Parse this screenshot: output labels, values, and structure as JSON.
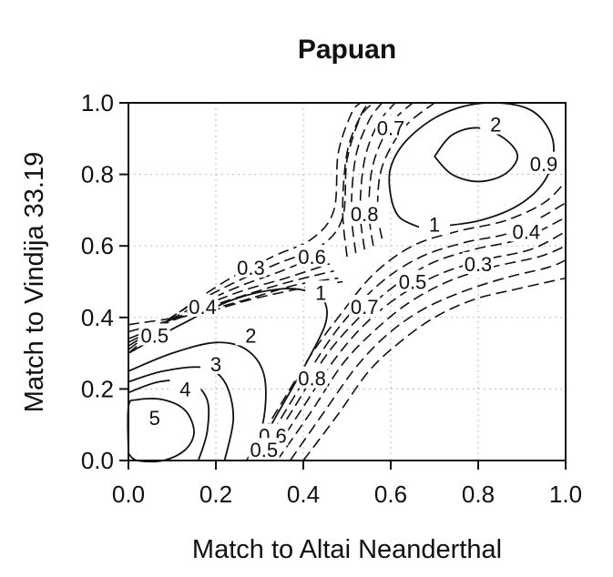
{
  "chart_data": {
    "type": "contour",
    "title": "Papuan",
    "xlabel": "Match to Altai Neanderthal",
    "ylabel": "Match to Vindija 33.19",
    "xlim": [
      0,
      1
    ],
    "ylim": [
      0,
      1
    ],
    "xticks": [
      0.0,
      0.2,
      0.4,
      0.6,
      0.8,
      1.0
    ],
    "yticks": [
      0.0,
      0.2,
      0.4,
      0.6,
      0.8,
      1.0
    ],
    "xtick_labels": [
      "0.0",
      "0.2",
      "0.4",
      "0.6",
      "0.8",
      "1.0"
    ],
    "ytick_labels": [
      "0.0",
      "0.2",
      "0.4",
      "0.6",
      "0.8",
      "1.0"
    ],
    "grid": true,
    "line_style_note": "solid lines for levels >= 1, dashed lines for levels < 1",
    "contour_labels": [
      {
        "text": "5",
        "x": 0.06,
        "y": 0.12
      },
      {
        "text": "4",
        "x": 0.13,
        "y": 0.2
      },
      {
        "text": "3",
        "x": 0.2,
        "y": 0.27
      },
      {
        "text": "2",
        "x": 0.28,
        "y": 0.35
      },
      {
        "text": "1",
        "x": 0.44,
        "y": 0.47
      },
      {
        "text": "0.4",
        "x": 0.17,
        "y": 0.43
      },
      {
        "text": "0.5",
        "x": 0.06,
        "y": 0.35
      },
      {
        "text": "0.3",
        "x": 0.28,
        "y": 0.54
      },
      {
        "text": "0.6",
        "x": 0.42,
        "y": 0.57
      },
      {
        "text": "0.8",
        "x": 0.54,
        "y": 0.69
      },
      {
        "text": "0.7",
        "x": 0.6,
        "y": 0.93
      },
      {
        "text": "2",
        "x": 0.84,
        "y": 0.94
      },
      {
        "text": "1",
        "x": 0.7,
        "y": 0.66
      },
      {
        "text": "0.9",
        "x": 0.95,
        "y": 0.83
      },
      {
        "text": "0.4",
        "x": 0.91,
        "y": 0.64
      },
      {
        "text": "0.3",
        "x": 0.8,
        "y": 0.55
      },
      {
        "text": "0.5",
        "x": 0.65,
        "y": 0.5
      },
      {
        "text": "0.7",
        "x": 0.54,
        "y": 0.43
      },
      {
        "text": "0.8",
        "x": 0.42,
        "y": 0.23
      },
      {
        "text": "0.6",
        "x": 0.33,
        "y": 0.07
      },
      {
        "text": "0.5",
        "x": 0.31,
        "y": 0.03
      }
    ],
    "contours": [
      {
        "level": "5",
        "style": "solid",
        "points": [
          [
            0.0,
            0.02
          ],
          [
            0.02,
            0.0
          ],
          [
            0.08,
            0.0
          ],
          [
            0.13,
            0.03
          ],
          [
            0.15,
            0.08
          ],
          [
            0.13,
            0.14
          ],
          [
            0.08,
            0.17
          ],
          [
            0.02,
            0.17
          ],
          [
            0.0,
            0.15
          ],
          [
            0.0,
            0.02
          ]
        ]
      },
      {
        "level": "4",
        "style": "solid",
        "points": [
          [
            0.0,
            0.19
          ],
          [
            0.07,
            0.22
          ],
          [
            0.14,
            0.22
          ],
          [
            0.18,
            0.17
          ],
          [
            0.18,
            0.08
          ],
          [
            0.16,
            0.0
          ]
        ]
      },
      {
        "level": "3",
        "style": "solid",
        "points": [
          [
            0.0,
            0.22
          ],
          [
            0.08,
            0.25
          ],
          [
            0.17,
            0.26
          ],
          [
            0.22,
            0.22
          ],
          [
            0.24,
            0.12
          ],
          [
            0.22,
            0.0
          ]
        ]
      },
      {
        "level": "2",
        "style": "solid",
        "points": [
          [
            0.0,
            0.25
          ],
          [
            0.1,
            0.3
          ],
          [
            0.2,
            0.33
          ],
          [
            0.27,
            0.31
          ],
          [
            0.31,
            0.24
          ],
          [
            0.31,
            0.12
          ],
          [
            0.28,
            0.0
          ]
        ]
      },
      {
        "level": "1",
        "style": "solid",
        "points": [
          [
            0.0,
            0.3
          ],
          [
            0.12,
            0.38
          ],
          [
            0.24,
            0.45
          ],
          [
            0.35,
            0.48
          ],
          [
            0.42,
            0.47
          ],
          [
            0.45,
            0.44
          ],
          [
            0.45,
            0.38
          ],
          [
            0.41,
            0.28
          ],
          [
            0.35,
            0.15
          ],
          [
            0.28,
            0.0
          ]
        ]
      },
      {
        "level": "2",
        "style": "solid",
        "points": [
          [
            0.7,
            0.85
          ],
          [
            0.74,
            0.8
          ],
          [
            0.8,
            0.78
          ],
          [
            0.86,
            0.8
          ],
          [
            0.89,
            0.85
          ],
          [
            0.86,
            0.9
          ],
          [
            0.8,
            0.93
          ],
          [
            0.74,
            0.91
          ],
          [
            0.7,
            0.85
          ]
        ]
      },
      {
        "level": "1",
        "style": "solid",
        "points": [
          [
            0.67,
            0.65
          ],
          [
            0.62,
            0.68
          ],
          [
            0.6,
            0.74
          ],
          [
            0.6,
            0.82
          ],
          [
            0.64,
            0.9
          ],
          [
            0.72,
            0.97
          ],
          [
            0.82,
            1.0
          ],
          [
            0.92,
            0.98
          ],
          [
            0.97,
            0.9
          ],
          [
            0.96,
            0.8
          ],
          [
            0.9,
            0.72
          ],
          [
            0.8,
            0.67
          ],
          [
            0.67,
            0.65
          ]
        ]
      },
      {
        "level": "0.9",
        "style": "dashed",
        "points": [
          [
            0.58,
            0.62
          ],
          [
            0.57,
            0.7
          ],
          [
            0.58,
            0.82
          ],
          [
            0.63,
            0.93
          ],
          [
            0.7,
            1.0
          ]
        ]
      },
      {
        "level": "0.8",
        "style": "dashed",
        "points": [
          [
            0.56,
            0.6
          ],
          [
            0.55,
            0.7
          ],
          [
            0.56,
            0.83
          ],
          [
            0.6,
            0.94
          ],
          [
            0.65,
            1.0
          ]
        ]
      },
      {
        "level": "0.7",
        "style": "dashed",
        "points": [
          [
            0.54,
            0.59
          ],
          [
            0.53,
            0.7
          ],
          [
            0.54,
            0.84
          ],
          [
            0.57,
            0.94
          ],
          [
            0.61,
            1.0
          ]
        ]
      },
      {
        "level": "0.6",
        "style": "dashed",
        "points": [
          [
            0.52,
            0.58
          ],
          [
            0.51,
            0.7
          ],
          [
            0.52,
            0.85
          ],
          [
            0.55,
            0.95
          ],
          [
            0.58,
            1.0
          ]
        ]
      },
      {
        "level": "0.5",
        "style": "dashed",
        "points": [
          [
            0.5,
            0.57
          ],
          [
            0.49,
            0.7
          ],
          [
            0.5,
            0.86
          ],
          [
            0.53,
            0.96
          ],
          [
            0.56,
            1.0
          ]
        ]
      },
      {
        "level": "0.3",
        "style": "dashed",
        "points": [
          [
            0.0,
            0.3
          ],
          [
            0.1,
            0.4
          ],
          [
            0.22,
            0.5
          ],
          [
            0.33,
            0.57
          ],
          [
            0.42,
            0.62
          ],
          [
            0.47,
            0.7
          ],
          [
            0.48,
            0.86
          ],
          [
            0.51,
            0.97
          ],
          [
            0.53,
            1.0
          ]
        ]
      },
      {
        "level": "0.4",
        "style": "dashed",
        "points": [
          [
            0.0,
            0.31
          ],
          [
            0.11,
            0.41
          ],
          [
            0.23,
            0.49
          ],
          [
            0.34,
            0.55
          ],
          [
            0.44,
            0.6
          ],
          [
            0.49,
            0.68
          ],
          [
            0.5,
            0.84
          ],
          [
            0.53,
            0.96
          ],
          [
            0.55,
            1.0
          ]
        ]
      },
      {
        "level": "0.5",
        "style": "dashed",
        "points": [
          [
            0.0,
            0.32
          ],
          [
            0.12,
            0.41
          ],
          [
            0.24,
            0.48
          ],
          [
            0.35,
            0.53
          ],
          [
            0.45,
            0.58
          ]
        ]
      },
      {
        "level": "0.6",
        "style": "dashed",
        "points": [
          [
            0.0,
            0.33
          ],
          [
            0.13,
            0.41
          ],
          [
            0.25,
            0.47
          ],
          [
            0.36,
            0.51
          ],
          [
            0.46,
            0.55
          ]
        ]
      },
      {
        "level": "0.7",
        "style": "dashed",
        "points": [
          [
            0.0,
            0.34
          ],
          [
            0.14,
            0.41
          ],
          [
            0.26,
            0.46
          ],
          [
            0.37,
            0.5
          ],
          [
            0.47,
            0.53
          ]
        ]
      },
      {
        "level": "0.8",
        "style": "dashed",
        "points": [
          [
            0.0,
            0.36
          ],
          [
            0.15,
            0.41
          ],
          [
            0.27,
            0.45
          ],
          [
            0.38,
            0.49
          ],
          [
            0.48,
            0.51
          ]
        ]
      },
      {
        "level": "0.9",
        "style": "dashed",
        "points": [
          [
            0.0,
            0.38
          ],
          [
            0.16,
            0.41
          ],
          [
            0.28,
            0.45
          ],
          [
            0.39,
            0.48
          ],
          [
            0.49,
            0.5
          ]
        ]
      },
      {
        "level": "0.9",
        "style": "dashed",
        "points": [
          [
            0.27,
            0.0
          ],
          [
            0.35,
            0.16
          ],
          [
            0.42,
            0.3
          ],
          [
            0.48,
            0.4
          ],
          [
            0.56,
            0.52
          ],
          [
            0.65,
            0.6
          ],
          [
            0.75,
            0.64
          ],
          [
            0.86,
            0.67
          ],
          [
            0.95,
            0.72
          ],
          [
            1.0,
            0.78
          ]
        ]
      },
      {
        "level": "0.8",
        "style": "dashed",
        "points": [
          [
            0.29,
            0.0
          ],
          [
            0.37,
            0.16
          ],
          [
            0.44,
            0.3
          ],
          [
            0.5,
            0.4
          ],
          [
            0.58,
            0.5
          ],
          [
            0.67,
            0.57
          ],
          [
            0.77,
            0.61
          ],
          [
            0.88,
            0.64
          ],
          [
            1.0,
            0.72
          ]
        ]
      },
      {
        "level": "0.7",
        "style": "dashed",
        "points": [
          [
            0.3,
            0.0
          ],
          [
            0.38,
            0.15
          ],
          [
            0.45,
            0.29
          ],
          [
            0.52,
            0.39
          ],
          [
            0.6,
            0.48
          ],
          [
            0.69,
            0.55
          ],
          [
            0.79,
            0.59
          ],
          [
            0.9,
            0.62
          ],
          [
            1.0,
            0.68
          ]
        ]
      },
      {
        "level": "0.6",
        "style": "dashed",
        "points": [
          [
            0.32,
            0.0
          ],
          [
            0.4,
            0.15
          ],
          [
            0.47,
            0.28
          ],
          [
            0.54,
            0.38
          ],
          [
            0.62,
            0.46
          ],
          [
            0.71,
            0.52
          ],
          [
            0.81,
            0.56
          ],
          [
            0.92,
            0.59
          ],
          [
            1.0,
            0.64
          ]
        ]
      },
      {
        "level": "0.5",
        "style": "dashed",
        "points": [
          [
            0.34,
            0.0
          ],
          [
            0.42,
            0.14
          ],
          [
            0.49,
            0.27
          ],
          [
            0.56,
            0.36
          ],
          [
            0.64,
            0.44
          ],
          [
            0.73,
            0.5
          ],
          [
            0.83,
            0.54
          ],
          [
            0.94,
            0.57
          ],
          [
            1.0,
            0.6
          ]
        ]
      },
      {
        "level": "0.4",
        "style": "dashed",
        "points": [
          [
            0.37,
            0.0
          ],
          [
            0.45,
            0.14
          ],
          [
            0.52,
            0.26
          ],
          [
            0.59,
            0.35
          ],
          [
            0.67,
            0.42
          ],
          [
            0.76,
            0.47
          ],
          [
            0.86,
            0.51
          ],
          [
            0.96,
            0.54
          ],
          [
            1.0,
            0.56
          ]
        ]
      },
      {
        "level": "0.3",
        "style": "dashed",
        "points": [
          [
            0.4,
            0.0
          ],
          [
            0.48,
            0.13
          ],
          [
            0.55,
            0.25
          ],
          [
            0.62,
            0.33
          ],
          [
            0.7,
            0.4
          ],
          [
            0.79,
            0.45
          ],
          [
            0.89,
            0.48
          ],
          [
            1.0,
            0.51
          ]
        ]
      }
    ]
  }
}
